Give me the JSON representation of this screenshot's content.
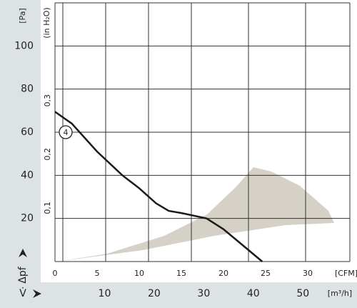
{
  "chart_data": {
    "type": "line",
    "y_label": "[Pa]",
    "y2_label": "(in H₂O)",
    "y_symbol": "Δpf",
    "x_symbol": "V̇",
    "x_label": "[CFM]",
    "x2_label": "[m³/h]",
    "xlim": [
      0,
      35
    ],
    "xticks": [
      0,
      5,
      10,
      15,
      20,
      25,
      30
    ],
    "x2lim": [
      0,
      59.47
    ],
    "x2ticks": [
      10,
      20,
      30,
      40,
      50
    ],
    "ylim": [
      0,
      120
    ],
    "yticks": [
      20,
      40,
      60,
      80,
      100
    ],
    "y2lim": [
      0,
      0.4818
    ],
    "y2ticks": [
      {
        "value": 0.1,
        "label": "0,1"
      },
      {
        "value": 0.2,
        "label": "0,2"
      },
      {
        "value": 0.3,
        "label": "0,3"
      }
    ],
    "grid": true,
    "series": [
      {
        "name": "4",
        "color": "#1a1a1a",
        "x": [
          0,
          2,
          5,
          8,
          10,
          12,
          13.5,
          15,
          18,
          20,
          22,
          24.6
        ],
        "values": [
          69.5,
          64,
          51,
          40,
          34,
          27,
          23.5,
          22.5,
          20,
          15,
          8.5,
          0
        ]
      }
    ]
  }
}
